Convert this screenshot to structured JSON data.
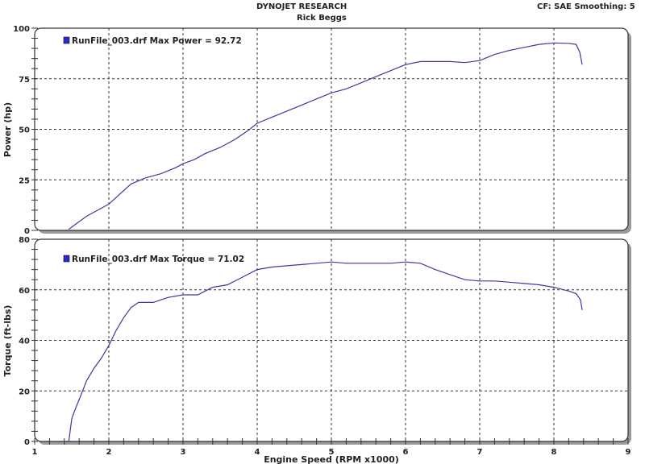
{
  "header": {
    "company": "DYNOJET RESEARCH",
    "operator": "Rick Beggs",
    "settings": "CF: SAE  Smoothing: 5"
  },
  "colors": {
    "curve": "#3a3aa0",
    "legend_swatch": "#2a2ad0",
    "grid": "#333333",
    "frame_shadow": "#9a9a9a"
  },
  "chart_data": [
    {
      "type": "line",
      "title": "Power",
      "xlabel": "Engine Speed (RPM x1000)",
      "ylabel": "Power (hp)",
      "xlim": [
        1,
        9
      ],
      "ylim": [
        0,
        100
      ],
      "xticks": [
        "1",
        "2",
        "3",
        "4",
        "5",
        "6",
        "7",
        "8",
        "9"
      ],
      "yticks": [
        "0",
        "25",
        "50",
        "75",
        "100"
      ],
      "grid": true,
      "legend": "RunFile_003.drf Max Power = 92.72",
      "series": [
        {
          "name": "RunFile_003.drf",
          "x": [
            1.46,
            1.55,
            1.7,
            1.85,
            2.0,
            2.15,
            2.3,
            2.5,
            2.7,
            2.9,
            3.0,
            3.15,
            3.3,
            3.5,
            3.7,
            3.9,
            4.0,
            4.2,
            4.4,
            4.6,
            4.8,
            5.0,
            5.2,
            5.4,
            5.6,
            5.8,
            6.0,
            6.2,
            6.4,
            6.6,
            6.8,
            7.0,
            7.2,
            7.4,
            7.6,
            7.8,
            8.0,
            8.2,
            8.3,
            8.35,
            8.38
          ],
          "y": [
            0.5,
            3,
            7,
            10,
            13,
            18,
            23,
            26,
            28,
            31,
            33,
            35,
            38,
            41,
            45,
            50,
            53,
            56,
            59,
            62,
            65,
            68,
            70,
            73,
            76,
            79,
            82,
            83.5,
            83.5,
            83.5,
            83,
            84,
            87,
            89,
            90.5,
            92,
            92.7,
            92.5,
            92,
            88,
            82
          ]
        }
      ]
    },
    {
      "type": "line",
      "title": "Torque",
      "xlabel": "Engine Speed (RPM x1000)",
      "ylabel": "Torque (ft-lbs)",
      "xlim": [
        1,
        9
      ],
      "ylim": [
        0,
        80
      ],
      "xticks": [
        "1",
        "2",
        "3",
        "4",
        "5",
        "6",
        "7",
        "8",
        "9"
      ],
      "yticks": [
        "0",
        "20",
        "40",
        "60",
        "80"
      ],
      "grid": true,
      "legend": "RunFile_003.drf Max Torque = 71.02",
      "series": [
        {
          "name": "RunFile_003.drf",
          "x": [
            1.46,
            1.5,
            1.55,
            1.62,
            1.7,
            1.8,
            1.9,
            2.0,
            2.1,
            2.2,
            2.3,
            2.4,
            2.5,
            2.6,
            2.8,
            3.0,
            3.2,
            3.4,
            3.6,
            3.8,
            4.0,
            4.2,
            4.4,
            4.6,
            4.8,
            5.0,
            5.2,
            5.4,
            5.6,
            5.8,
            6.0,
            6.2,
            6.4,
            6.6,
            6.8,
            7.0,
            7.2,
            7.4,
            7.6,
            7.8,
            8.0,
            8.2,
            8.3,
            8.36,
            8.38
          ],
          "y": [
            0,
            9,
            13,
            18,
            24,
            29,
            33,
            38,
            44,
            49,
            53,
            55,
            55,
            55,
            57,
            58,
            58,
            61,
            62,
            65,
            68,
            69,
            69.5,
            70,
            70.5,
            71,
            70.5,
            70.5,
            70.5,
            70.5,
            71,
            70.5,
            68,
            66,
            64,
            63.5,
            63.5,
            63,
            62.5,
            62,
            61,
            59.5,
            58.5,
            56,
            52
          ]
        }
      ]
    }
  ]
}
